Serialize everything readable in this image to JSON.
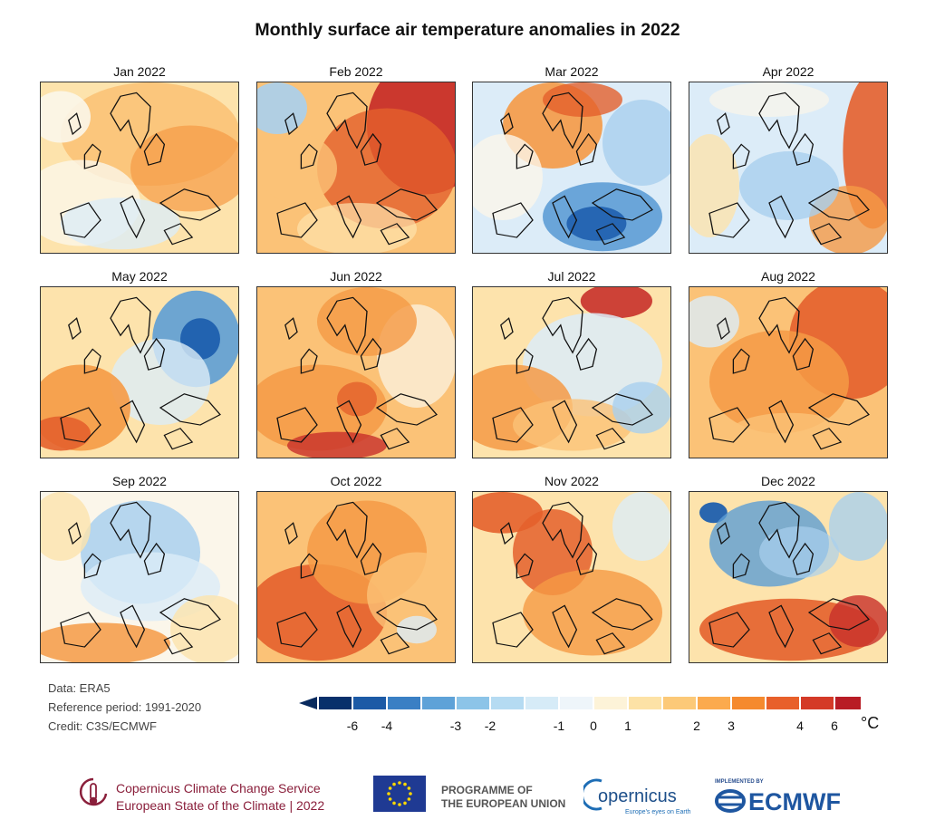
{
  "title": "Monthly surface air temperature anomalies in 2022",
  "panels": [
    {
      "label": "Jan 2022",
      "dominant": "warm",
      "notes": "mild warm across most of Europe"
    },
    {
      "label": "Feb 2022",
      "dominant": "very-warm-east",
      "notes": "strong warm anomaly in the east"
    },
    {
      "label": "Mar 2022",
      "dominant": "cold-southeast",
      "notes": "cold anomaly over southeast Europe"
    },
    {
      "label": "Apr 2022",
      "dominant": "cool-centre-warm-east",
      "notes": "cool centre, warm east"
    },
    {
      "label": "May 2022",
      "dominant": "cold-northeast-warm-southwest",
      "notes": "cold northeast, warm southwest"
    },
    {
      "label": "Jun 2022",
      "dominant": "warm",
      "notes": "widespread warm"
    },
    {
      "label": "Jul 2022",
      "dominant": "warm-southwest",
      "notes": "warm south and west"
    },
    {
      "label": "Aug 2022",
      "dominant": "warm",
      "notes": "warm across Europe"
    },
    {
      "label": "Sep 2022",
      "dominant": "cool-centre",
      "notes": "cool centre, warm south"
    },
    {
      "label": "Oct 2022",
      "dominant": "warm",
      "notes": "strong warm west"
    },
    {
      "label": "Nov 2022",
      "dominant": "warm",
      "notes": "warm north and south"
    },
    {
      "label": "Dec 2022",
      "dominant": "cold-north-warm-south",
      "notes": "cold north, warm south"
    }
  ],
  "meta": {
    "data": "Data: ERA5",
    "reference": "Reference period: 1991-2020",
    "credit": "Credit: C3S/ECMWF"
  },
  "colorbar": {
    "ticks": [
      "-6",
      "-4",
      "-3",
      "-2",
      "-1",
      "0",
      "1",
      "2",
      "3",
      "4",
      "6"
    ],
    "unit": "°C",
    "colors": [
      "#08306b",
      "#1c5aa6",
      "#3a7fc4",
      "#5ea2d8",
      "#8cc4e8",
      "#b5dbf2",
      "#d6ebf7",
      "#eef5fa",
      "#fdf3d8",
      "#fde2a6",
      "#fcc978",
      "#fbaa4e",
      "#f58a2e",
      "#e8602a",
      "#d43a27",
      "#b81c25"
    ],
    "arrow_left": "#082a5e",
    "arrow_right": "#a0121c"
  },
  "footer": {
    "c3s_line1": "Copernicus Climate Change Service",
    "c3s_line2": "European State of the Climate | 2022",
    "programme_line1": "PROGRAMME OF",
    "programme_line2": "THE EUROPEAN UNION",
    "copernicus": "opernicus",
    "copernicus_tagline": "Europe's eyes on Earth",
    "implemented_by": "IMPLEMENTED BY",
    "ecmwf": "ECMWF"
  }
}
